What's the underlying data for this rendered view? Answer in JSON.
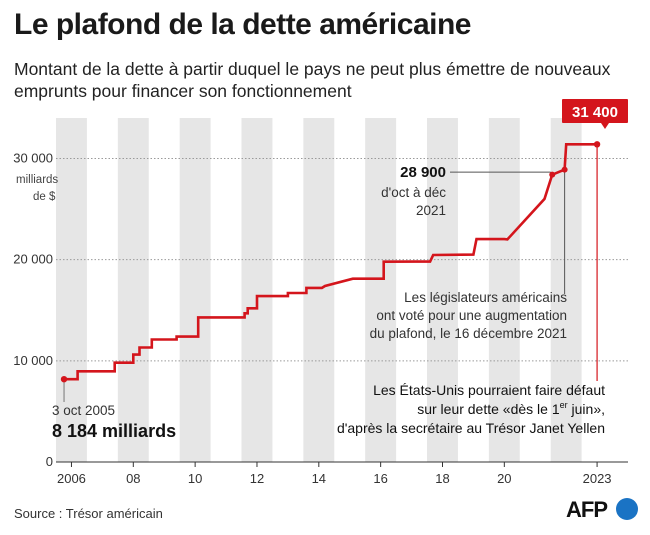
{
  "header": {
    "title": "Le plafond de la dette américaine",
    "subtitle": "Montant de la dette à partir duquel le pays ne peut plus émettre de nouveaux emprunts pour financer son fonctionnement"
  },
  "chart_data": {
    "type": "line",
    "title": "Le plafond de la dette américaine",
    "subtitle": "Montant de la dette à partir duquel le pays ne peut plus émettre de nouveaux emprunts pour financer son fonctionnement",
    "ylabel": "milliards de $",
    "ylabel_lines": [
      "milliards",
      "de $"
    ],
    "ylim": [
      0,
      34000
    ],
    "xlim": [
      2005.5,
      2024.0
    ],
    "grid": "alternating vertical bands per year",
    "x_ticks": [
      {
        "value": 2006,
        "label": "2006"
      },
      {
        "value": 2008,
        "label": "08"
      },
      {
        "value": 2010,
        "label": "10"
      },
      {
        "value": 2012,
        "label": "12"
      },
      {
        "value": 2014,
        "label": "14"
      },
      {
        "value": 2016,
        "label": "16"
      },
      {
        "value": 2018,
        "label": "18"
      },
      {
        "value": 2020,
        "label": "20"
      },
      {
        "value": 2023,
        "label": "2023"
      }
    ],
    "y_ticks": [
      {
        "value": 0,
        "label": "0"
      },
      {
        "value": 10000,
        "label": "10 000"
      },
      {
        "value": 20000,
        "label": "20 000"
      },
      {
        "value": 30000,
        "label": "30 000"
      }
    ],
    "series": [
      {
        "color": "#d4151c",
        "x": [
          2005.76,
          2006.2,
          2006.2,
          2007.4,
          2007.4,
          2008.0,
          2008.0,
          2008.2,
          2008.2,
          2008.6,
          2008.6,
          2009.4,
          2009.4,
          2010.1,
          2010.1,
          2011.6,
          2011.6,
          2011.7,
          2011.7,
          2012.0,
          2012.0,
          2013.0,
          2013.0,
          2013.6,
          2013.6,
          2014.1,
          2014.2,
          2015.1,
          2015.1,
          2016.1,
          2016.1,
          2017.1,
          2017.1,
          2017.6,
          2017.7,
          2019.0,
          2019.1,
          2020.0,
          2020.1,
          2021.3,
          2021.55,
          2021.95,
          2022.0,
          2023.0
        ],
        "y": [
          8184,
          8184,
          8965,
          8965,
          9815,
          9815,
          10615,
          10615,
          11315,
          11315,
          12104,
          12104,
          12394,
          12394,
          14294,
          14294,
          14694,
          14694,
          15194,
          15194,
          16394,
          16394,
          16699,
          16699,
          17212,
          17212,
          17400,
          18113,
          18113,
          18113,
          19800,
          19808,
          19808,
          19808,
          20456,
          20500,
          22030,
          22030,
          22000,
          26000,
          28400,
          28900,
          31400,
          31400
        ]
      }
    ],
    "annotations": {
      "start_date": "3 oct 2005",
      "start_value": "8 184 milliards",
      "mid_value": "28 900",
      "mid_period_1": "d'oct à déc",
      "mid_period_2": "2021",
      "end_value": "31 400",
      "vote_1": "Les législateurs américains",
      "vote_2": "ont voté pour une augmentation",
      "vote_3": "du plafond, le 16 décembre 2021",
      "default_1": "Les États-Unis pourraient faire défaut",
      "default_2a": "sur leur dette «dès le 1",
      "default_2sup": "er",
      "default_2b": " juin»,",
      "default_3": "d'après la secrétaire au Trésor Janet Yellen"
    }
  },
  "footer": {
    "source": "Source : Trésor américain",
    "logo": "AFP",
    "logo_icon": "globe-icon"
  },
  "colors": {
    "accent": "#d4151c",
    "band": "#e6e6e6"
  }
}
